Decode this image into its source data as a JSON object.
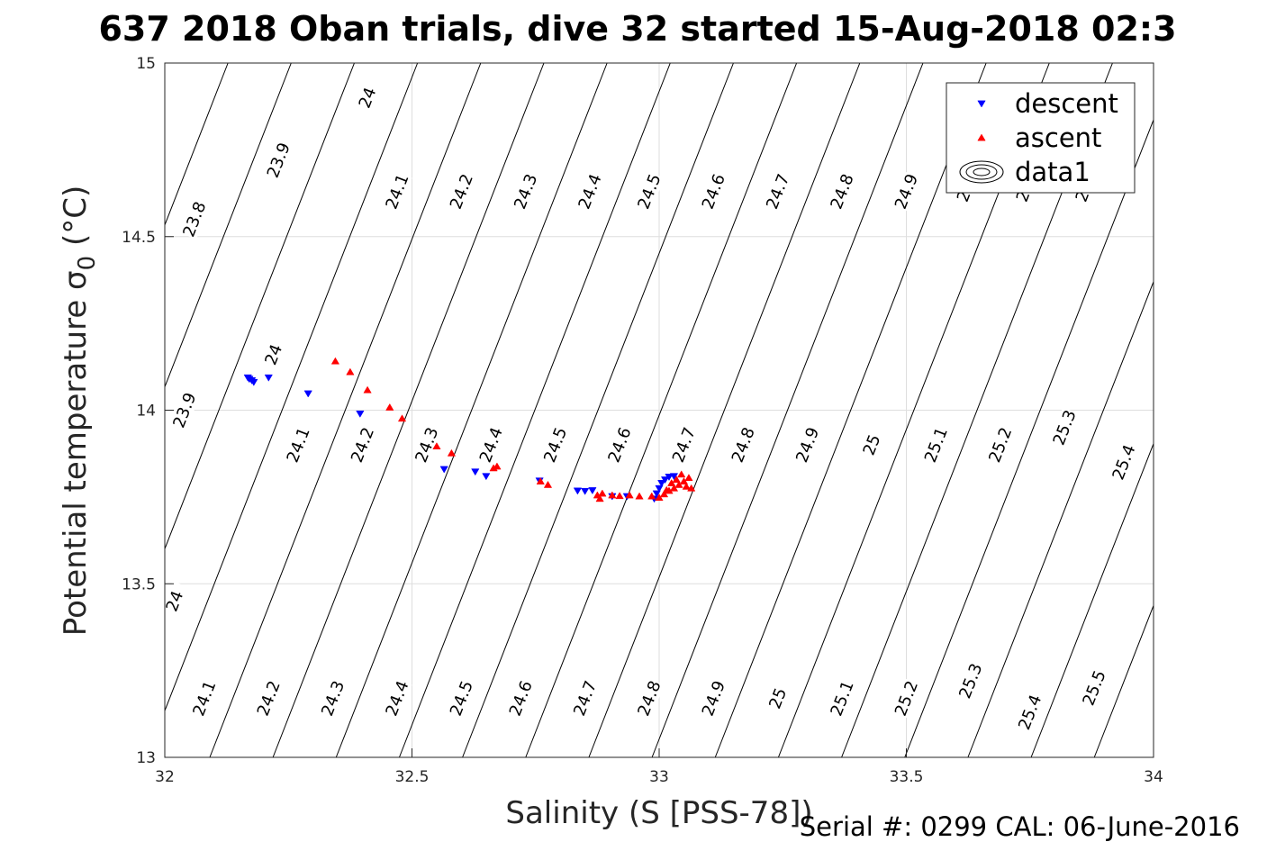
{
  "chart_data": {
    "type": "scatter",
    "title": "637 2018 Oban trials, dive 32 started 15-Aug-2018 02:3",
    "xlabel": "Salinity (S [PSS-78])",
    "ylabel_main": "Potential temperature σ",
    "ylabel_sub": "0",
    "ylabel_unit": " (°C)",
    "xlim": [
      32,
      34
    ],
    "ylim": [
      13,
      15
    ],
    "xticks": [
      "32",
      "32.5",
      "33",
      "33.5",
      "34"
    ],
    "yticks": [
      "13",
      "13.5",
      "14",
      "14.5",
      "15"
    ],
    "grid": true,
    "legend": {
      "placement": "top-right",
      "entries": [
        {
          "label": "descent",
          "color": "#0000ff",
          "marker": "triangle-down"
        },
        {
          "label": "ascent",
          "color": "#ff0000",
          "marker": "triangle-up"
        },
        {
          "label": "data1",
          "color": "#000000",
          "marker": "contour"
        }
      ]
    },
    "contours": {
      "slope_sal_per_degC": 0.274,
      "spacing_sal": 0.1278,
      "label_rows": [
        {
          "y": 14.9,
          "labels": [
            {
              "level": "23.8",
              "x": 32.06,
              "y": 14.55
            },
            {
              "level": "23.9",
              "x": 32.23,
              "y": 14.72
            },
            {
              "level": "24",
              "x": 32.41,
              "y": 14.9
            },
            {
              "level": "24.1",
              "x": 32.47,
              "y": 14.63
            },
            {
              "level": "24.2",
              "x": 32.6,
              "y": 14.63
            },
            {
              "level": "24.3",
              "x": 32.73,
              "y": 14.63
            },
            {
              "level": "24.4",
              "x": 32.86,
              "y": 14.63
            },
            {
              "level": "24.5",
              "x": 32.98,
              "y": 14.63
            },
            {
              "level": "24.6",
              "x": 33.11,
              "y": 14.63
            },
            {
              "level": "24.7",
              "x": 33.24,
              "y": 14.63
            },
            {
              "level": "24.8",
              "x": 33.37,
              "y": 14.63
            },
            {
              "level": "24.9",
              "x": 33.5,
              "y": 14.63
            },
            {
              "level": "25",
              "x": 33.62,
              "y": 14.63
            },
            {
              "level": "25",
              "x": 33.74,
              "y": 14.63
            },
            {
              "level": "25",
              "x": 33.86,
              "y": 14.63
            }
          ]
        },
        {
          "y": 13.88,
          "labels": [
            {
              "level": "23.9",
              "x": 32.04,
              "y": 14.0
            },
            {
              "level": "24",
              "x": 32.22,
              "y": 14.16
            },
            {
              "level": "24.1",
              "x": 32.27,
              "y": 13.9
            },
            {
              "level": "24.2",
              "x": 32.4,
              "y": 13.9
            },
            {
              "level": "24.3",
              "x": 32.53,
              "y": 13.9
            },
            {
              "level": "24.4",
              "x": 32.66,
              "y": 13.9
            },
            {
              "level": "24.5",
              "x": 32.79,
              "y": 13.9
            },
            {
              "level": "24.6",
              "x": 32.92,
              "y": 13.9
            },
            {
              "level": "24.7",
              "x": 33.05,
              "y": 13.9
            },
            {
              "level": "24.8",
              "x": 33.17,
              "y": 13.9
            },
            {
              "level": "24.9",
              "x": 33.3,
              "y": 13.9
            },
            {
              "level": "25",
              "x": 33.43,
              "y": 13.9
            },
            {
              "level": "25.1",
              "x": 33.56,
              "y": 13.9
            },
            {
              "level": "25.2",
              "x": 33.69,
              "y": 13.9
            },
            {
              "level": "25.3",
              "x": 33.82,
              "y": 13.95
            },
            {
              "level": "25.4",
              "x": 33.94,
              "y": 13.85
            }
          ]
        },
        {
          "y": 13.17,
          "labels": [
            {
              "level": "24",
              "x": 32.02,
              "y": 13.45
            },
            {
              "level": "24.1",
              "x": 32.08,
              "y": 13.17
            },
            {
              "level": "24.2",
              "x": 32.21,
              "y": 13.17
            },
            {
              "level": "24.3",
              "x": 32.34,
              "y": 13.17
            },
            {
              "level": "24.4",
              "x": 32.47,
              "y": 13.17
            },
            {
              "level": "24.5",
              "x": 32.6,
              "y": 13.17
            },
            {
              "level": "24.6",
              "x": 32.72,
              "y": 13.17
            },
            {
              "level": "24.7",
              "x": 32.85,
              "y": 13.17
            },
            {
              "level": "24.8",
              "x": 32.98,
              "y": 13.17
            },
            {
              "level": "24.9",
              "x": 33.11,
              "y": 13.17
            },
            {
              "level": "25",
              "x": 33.24,
              "y": 13.17
            },
            {
              "level": "25.1",
              "x": 33.37,
              "y": 13.17
            },
            {
              "level": "25.2",
              "x": 33.5,
              "y": 13.17
            },
            {
              "level": "25.3",
              "x": 33.63,
              "y": 13.22
            },
            {
              "level": "25.4",
              "x": 33.75,
              "y": 13.13
            },
            {
              "level": "25.5",
              "x": 33.88,
              "y": 13.2
            }
          ]
        }
      ]
    },
    "series": [
      {
        "name": "descent",
        "color": "#0000ff",
        "marker": "triangle-down",
        "x": [
          32.168,
          32.171,
          32.176,
          32.18,
          32.21,
          32.29,
          32.395,
          32.565,
          32.628,
          32.65,
          32.758,
          32.835,
          32.85,
          32.865,
          32.905,
          32.935,
          32.99,
          32.995,
          33.0,
          33.005,
          33.012,
          33.02,
          33.03
        ],
        "y": [
          14.094,
          14.09,
          14.086,
          14.081,
          14.094,
          14.048,
          13.99,
          13.83,
          13.823,
          13.81,
          13.797,
          13.768,
          13.767,
          13.769,
          13.752,
          13.752,
          13.745,
          13.76,
          13.775,
          13.79,
          13.8,
          13.808,
          13.81
        ]
      },
      {
        "name": "ascent",
        "color": "#ff0000",
        "marker": "triangle-up",
        "x": [
          32.345,
          32.375,
          32.41,
          32.455,
          32.48,
          32.55,
          32.58,
          32.665,
          32.672,
          32.76,
          32.775,
          32.875,
          32.88,
          32.885,
          32.905,
          32.92,
          32.94,
          32.96,
          32.985,
          33.0,
          33.01,
          33.02,
          33.03,
          33.04,
          33.05,
          33.06,
          33.065,
          33.025,
          33.045,
          33.015,
          33.035,
          33.055
        ],
        "y": [
          14.141,
          14.11,
          14.058,
          14.008,
          13.976,
          13.896,
          13.876,
          13.833,
          13.838,
          13.795,
          13.785,
          13.755,
          13.745,
          13.76,
          13.755,
          13.753,
          13.755,
          13.752,
          13.752,
          13.748,
          13.758,
          13.768,
          13.775,
          13.785,
          13.795,
          13.805,
          13.775,
          13.79,
          13.815,
          13.77,
          13.8,
          13.78
        ]
      }
    ]
  },
  "footer": {
    "serial_label": "Serial #: 0299 CAL: 06-June-2016"
  }
}
